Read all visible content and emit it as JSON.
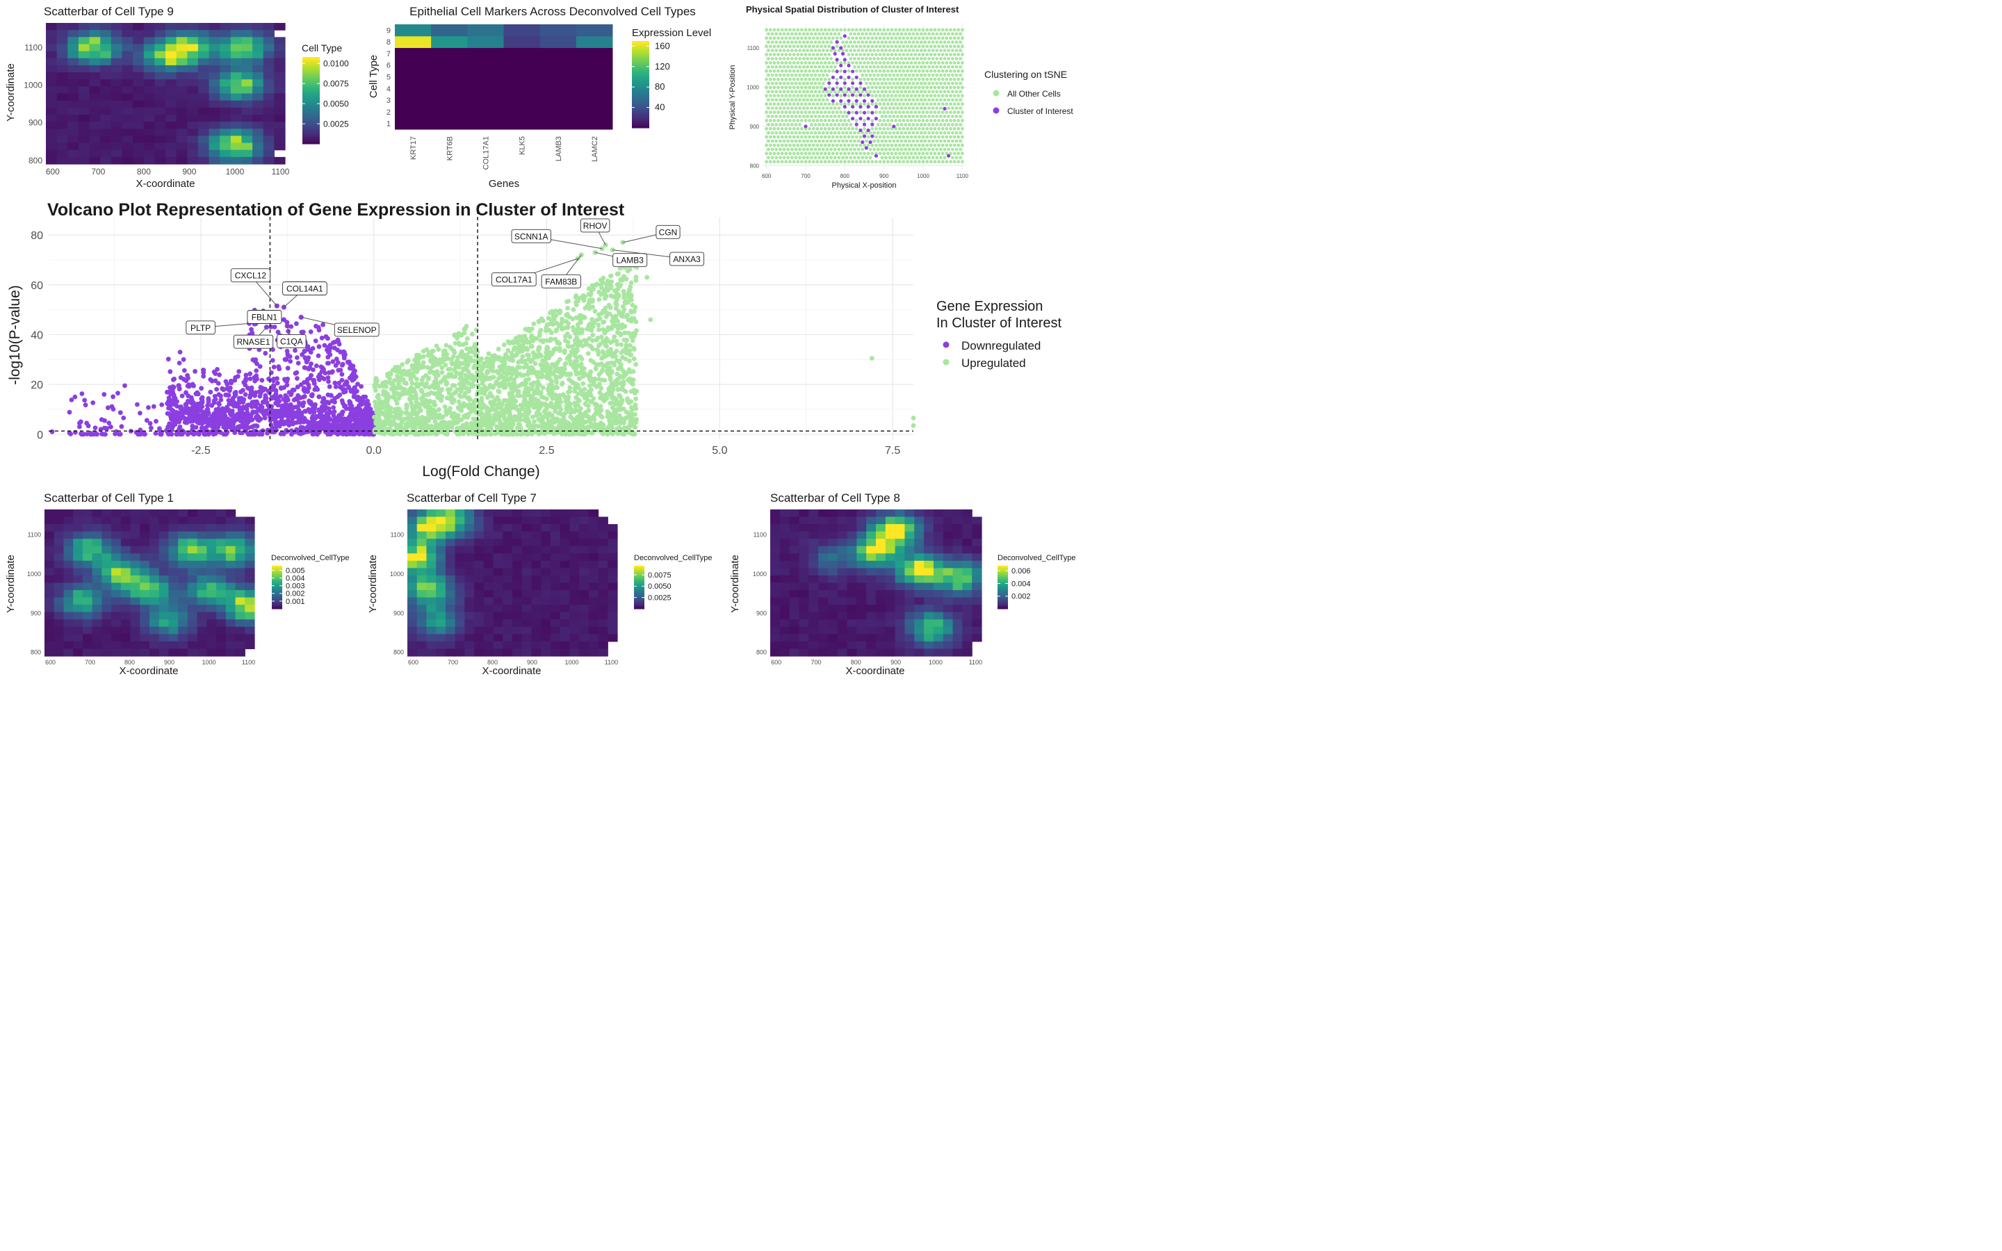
{
  "chart_data": [
    {
      "id": "ct9",
      "type": "heatmap",
      "title": "Scatterbar of Cell Type 9",
      "xlabel": "X-coordinate",
      "ylabel": "Y-coordinate",
      "xlim": [
        585,
        1110
      ],
      "ylim": [
        790,
        1165
      ],
      "xticks": [
        600,
        700,
        800,
        900,
        1000,
        1100
      ],
      "yticks": [
        800,
        900,
        1000,
        1100
      ],
      "legend_title": "Cell Type",
      "legend_ticks": [
        "0.0100",
        "0.0075",
        "0.0050",
        "0.0025"
      ],
      "legend_values": [
        0.01,
        0.0075,
        0.005,
        0.0025
      ],
      "vmax": 0.0108,
      "hotspots": [
        {
          "x": 690,
          "y": 1100,
          "v": 0.0095
        },
        {
          "x": 850,
          "y": 1075,
          "v": 0.0075
        },
        {
          "x": 900,
          "y": 1100,
          "v": 0.008
        },
        {
          "x": 1020,
          "y": 1100,
          "v": 0.0085
        },
        {
          "x": 1010,
          "y": 1000,
          "v": 0.0085
        },
        {
          "x": 1000,
          "y": 840,
          "v": 0.0105
        }
      ]
    },
    {
      "id": "markers",
      "type": "heatmap",
      "title": "Epithelial Cell Markers Across Deconvolved Cell Types",
      "xlabel": "Genes",
      "ylabel": "Cell Type",
      "genes": [
        "KRT17",
        "KRT6B",
        "COL17A1",
        "KLK5",
        "LAMB3",
        "LAMC2"
      ],
      "cell_types": [
        "1",
        "2",
        "3",
        "4",
        "5",
        "6",
        "7",
        "8",
        "9"
      ],
      "values": [
        [
          0,
          0,
          0,
          0,
          0,
          0
        ],
        [
          0,
          0,
          0,
          0,
          0,
          0
        ],
        [
          0,
          0,
          0,
          0,
          0,
          0
        ],
        [
          0,
          0,
          0,
          0,
          0,
          0
        ],
        [
          0,
          0,
          0,
          0,
          0,
          0
        ],
        [
          0,
          0,
          0,
          0,
          0,
          0
        ],
        [
          0,
          0,
          0,
          0,
          0,
          0
        ],
        [
          165,
          90,
          75,
          30,
          40,
          75
        ],
        [
          80,
          55,
          65,
          35,
          45,
          50
        ]
      ],
      "legend_title": "Expression Level",
      "legend_ticks": [
        "160",
        "120",
        "80",
        "40"
      ],
      "legend_values": [
        160,
        120,
        80,
        40
      ],
      "vmin": 0,
      "vmax": 170
    },
    {
      "id": "spatial",
      "type": "scatter",
      "title": "Physical Spatial Distribution of Cluster of Interest",
      "xlabel": "Physical X-position",
      "ylabel": "Physical Y-Position",
      "xlim": [
        590,
        1110
      ],
      "ylim": [
        790,
        1160
      ],
      "xticks": [
        "600",
        "700",
        "800",
        "900",
        "1000",
        "1100"
      ],
      "yticks": [
        "800",
        "900",
        "1000",
        "1100"
      ],
      "legend_title": "Clustering on tSNE",
      "series": [
        {
          "name": "All Other Cells",
          "color": "#a8e6a0"
        },
        {
          "name": "Cluster of Interest",
          "color": "#8b3fe0"
        }
      ],
      "cluster_points": [
        [
          800,
          1130
        ],
        [
          780,
          1115
        ],
        [
          770,
          1100
        ],
        [
          790,
          1100
        ],
        [
          775,
          1085
        ],
        [
          795,
          1085
        ],
        [
          780,
          1070
        ],
        [
          800,
          1070
        ],
        [
          790,
          1055
        ],
        [
          810,
          1055
        ],
        [
          780,
          1040
        ],
        [
          800,
          1040
        ],
        [
          820,
          1040
        ],
        [
          770,
          1025
        ],
        [
          790,
          1025
        ],
        [
          810,
          1025
        ],
        [
          830,
          1025
        ],
        [
          760,
          1010
        ],
        [
          780,
          1010
        ],
        [
          800,
          1010
        ],
        [
          820,
          1010
        ],
        [
          840,
          1010
        ],
        [
          750,
          995
        ],
        [
          770,
          995
        ],
        [
          790,
          995
        ],
        [
          810,
          995
        ],
        [
          830,
          995
        ],
        [
          850,
          995
        ],
        [
          760,
          980
        ],
        [
          780,
          980
        ],
        [
          800,
          980
        ],
        [
          820,
          980
        ],
        [
          840,
          980
        ],
        [
          860,
          980
        ],
        [
          770,
          965
        ],
        [
          790,
          965
        ],
        [
          810,
          965
        ],
        [
          830,
          965
        ],
        [
          850,
          965
        ],
        [
          870,
          965
        ],
        [
          800,
          950
        ],
        [
          820,
          950
        ],
        [
          840,
          950
        ],
        [
          860,
          950
        ],
        [
          880,
          950
        ],
        [
          810,
          935
        ],
        [
          830,
          935
        ],
        [
          850,
          935
        ],
        [
          870,
          935
        ],
        [
          820,
          920
        ],
        [
          840,
          920
        ],
        [
          860,
          920
        ],
        [
          880,
          920
        ],
        [
          830,
          905
        ],
        [
          850,
          905
        ],
        [
          870,
          905
        ],
        [
          840,
          890
        ],
        [
          860,
          890
        ],
        [
          850,
          875
        ],
        [
          870,
          875
        ],
        [
          845,
          860
        ],
        [
          865,
          860
        ],
        [
          855,
          845
        ],
        [
          700,
          900
        ],
        [
          925,
          900
        ],
        [
          1055,
          945
        ],
        [
          1065,
          825
        ],
        [
          880,
          825
        ]
      ]
    },
    {
      "id": "volcano",
      "type": "scatter",
      "title": "Volcano Plot Representation of Gene Expression in Cluster of Interest",
      "xlabel": "Log(Fold Change)",
      "ylabel": "-log10(P-value)",
      "xlim": [
        -4.7,
        7.8
      ],
      "ylim": [
        -2,
        87
      ],
      "xticks": [
        -2.5,
        0.0,
        2.5,
        5.0,
        7.5
      ],
      "xtick_labels": [
        "-2.5",
        "0.0",
        "2.5",
        "5.0",
        "7.5"
      ],
      "yticks": [
        0,
        20,
        40,
        60,
        80
      ],
      "yticklabels": [
        "0",
        "20",
        "40",
        "60",
        "80"
      ],
      "vlines": [
        -1.5,
        1.5
      ],
      "hline": 1.3,
      "legend_title_1": "Gene Expression",
      "legend_title_2": "In Cluster of Interest",
      "series": [
        {
          "name": "Downregulated",
          "color": "#8b3fe0"
        },
        {
          "name": "Upregulated",
          "color": "#a8e6a0"
        }
      ],
      "labels": [
        {
          "gene": "CXCL12",
          "x": -1.4,
          "y": 51.5
        },
        {
          "gene": "COL14A1",
          "x": -1.3,
          "y": 51
        },
        {
          "gene": "FBLN1",
          "x": -1.3,
          "y": 46
        },
        {
          "gene": "SELENOP",
          "x": -1.05,
          "y": 47
        },
        {
          "gene": "PLTP",
          "x": -1.8,
          "y": 44.5
        },
        {
          "gene": "RNASE1",
          "x": -1.55,
          "y": 43
        },
        {
          "gene": "C1QA",
          "x": -1.25,
          "y": 43.5
        },
        {
          "gene": "RHOV",
          "x": 3.35,
          "y": 76
        },
        {
          "gene": "CGN",
          "x": 3.6,
          "y": 77
        },
        {
          "gene": "SCNN1A",
          "x": 3.3,
          "y": 74.5
        },
        {
          "gene": "LAMB3",
          "x": 3.2,
          "y": 73
        },
        {
          "gene": "ANXA3",
          "x": 3.45,
          "y": 74
        },
        {
          "gene": "COL17A1",
          "x": 2.95,
          "y": 70.5
        },
        {
          "gene": "FAM83B",
          "x": 3.0,
          "y": 72
        }
      ],
      "extra_points": [
        [
          7.2,
          30.5
        ],
        [
          7.8,
          6.5
        ],
        [
          7.8,
          3.5
        ],
        [
          -3.6,
          19.5
        ],
        [
          -3.7,
          16.5
        ],
        [
          -4.65,
          1
        ],
        [
          -2.8,
          33
        ],
        [
          -2.75,
          30
        ],
        [
          4.0,
          46
        ],
        [
          3.8,
          67
        ],
        [
          3.95,
          63
        ],
        [
          3.7,
          32
        ],
        [
          3.1,
          3
        ],
        [
          3.2,
          8
        ]
      ]
    },
    {
      "id": "ct1",
      "type": "heatmap",
      "title": "Scatterbar of Cell Type 1",
      "xlabel": "X-coordinate",
      "ylabel": "Y-coordinate",
      "xlim": [
        585,
        1115
      ],
      "ylim": [
        790,
        1165
      ],
      "xticks": [
        600,
        700,
        800,
        900,
        1000,
        1100
      ],
      "yticks": [
        800,
        900,
        1000,
        1100
      ],
      "legend_title": "Deconvolved_CellType",
      "legend_ticks": [
        "0.005",
        "0.004",
        "0.003",
        "0.002",
        "0.001"
      ],
      "legend_values": [
        0.005,
        0.004,
        0.003,
        0.002,
        0.001
      ],
      "vmax": 0.0056,
      "hotspots": [
        {
          "x": 700,
          "y": 1060,
          "v": 0.004
        },
        {
          "x": 780,
          "y": 1000,
          "v": 0.0045
        },
        {
          "x": 850,
          "y": 960,
          "v": 0.004
        },
        {
          "x": 950,
          "y": 1060,
          "v": 0.0042
        },
        {
          "x": 1060,
          "y": 1060,
          "v": 0.0042
        },
        {
          "x": 1000,
          "y": 960,
          "v": 0.0035
        },
        {
          "x": 1100,
          "y": 920,
          "v": 0.0055
        },
        {
          "x": 680,
          "y": 930,
          "v": 0.0035
        },
        {
          "x": 900,
          "y": 880,
          "v": 0.003
        }
      ]
    },
    {
      "id": "ct7",
      "type": "heatmap",
      "title": "Scatterbar of Cell Type 7",
      "xlabel": "X-coordinate",
      "ylabel": "Y-coordinate",
      "xlim": [
        585,
        1115
      ],
      "ylim": [
        790,
        1165
      ],
      "xticks": [
        600,
        700,
        800,
        900,
        1000,
        1100
      ],
      "yticks": [
        800,
        900,
        1000,
        1100
      ],
      "legend_title": "Deconvolved_CellType",
      "legend_ticks": [
        "0.0075",
        "0.0050",
        "0.0025"
      ],
      "legend_values": [
        0.0075,
        0.005,
        0.0025
      ],
      "vmax": 0.0095,
      "hotspots": [
        {
          "x": 605,
          "y": 1040,
          "v": 0.0095
        },
        {
          "x": 640,
          "y": 1120,
          "v": 0.0085
        },
        {
          "x": 700,
          "y": 1140,
          "v": 0.006
        },
        {
          "x": 640,
          "y": 960,
          "v": 0.0075
        },
        {
          "x": 660,
          "y": 880,
          "v": 0.005
        }
      ]
    },
    {
      "id": "ct8",
      "type": "heatmap",
      "title": "Scatterbar of Cell Type 8",
      "xlabel": "X-coordinate",
      "ylabel": "Y-coordinate",
      "xlim": [
        585,
        1115
      ],
      "ylim": [
        790,
        1165
      ],
      "xticks": [
        600,
        700,
        800,
        900,
        1000,
        1100
      ],
      "yticks": [
        800,
        900,
        1000,
        1100
      ],
      "legend_title": "Deconvolved_CellType",
      "legend_ticks": [
        "0.006",
        "0.004",
        "0.002"
      ],
      "legend_values": [
        0.006,
        0.004,
        0.002
      ],
      "vmax": 0.0068,
      "hotspots": [
        {
          "x": 900,
          "y": 1110,
          "v": 0.0068
        },
        {
          "x": 850,
          "y": 1060,
          "v": 0.0058
        },
        {
          "x": 960,
          "y": 1010,
          "v": 0.0065
        },
        {
          "x": 1060,
          "y": 990,
          "v": 0.0055
        },
        {
          "x": 990,
          "y": 860,
          "v": 0.005
        },
        {
          "x": 740,
          "y": 1040,
          "v": 0.002
        }
      ]
    }
  ]
}
